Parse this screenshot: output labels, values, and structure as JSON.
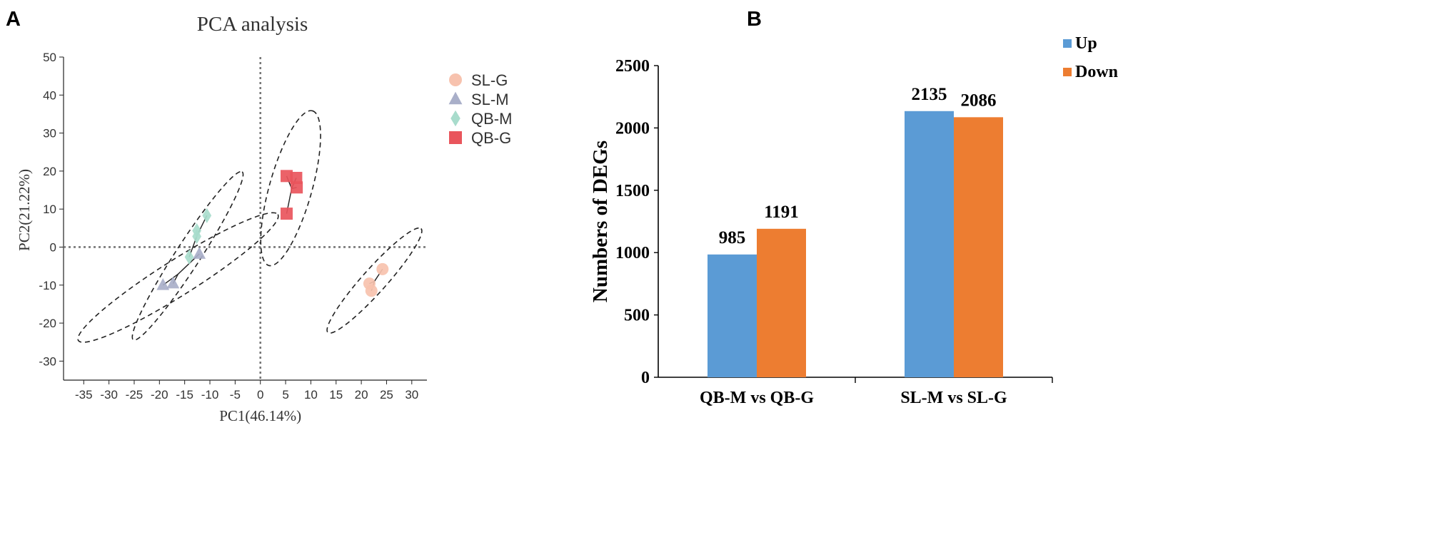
{
  "panels": {
    "left_letter": "A",
    "right_letter": "B"
  },
  "chart_data": [
    {
      "type": "scatter",
      "title": "PCA analysis",
      "xlabel": "PC1(46.14%)",
      "ylabel": "PC2(21.22%)",
      "xlim": [
        -39,
        33
      ],
      "ylim": [
        -35,
        50
      ],
      "xticks": [
        -35,
        -30,
        -25,
        -20,
        -15,
        -10,
        -5,
        0,
        5,
        10,
        15,
        20,
        25,
        30
      ],
      "yticks": [
        -30,
        -20,
        -10,
        0,
        10,
        20,
        30,
        40,
        50
      ],
      "reference_lines": {
        "x": 0,
        "y": 0
      },
      "legend_position": "top-right, outside plot",
      "series": [
        {
          "name": "SL-G",
          "marker": "circle",
          "color": "#f7c2ae",
          "points": [
            [
              24.2,
              -5.8
            ],
            [
              21.6,
              -9.6
            ],
            [
              22.0,
              -11.5
            ]
          ],
          "center": [
            22.6,
            -9.0
          ],
          "ellipse": {
            "center": [
              22.6,
              -8.8
            ],
            "semi_major": 16.5,
            "semi_minor": 2.7,
            "angle_deg": 56
          }
        },
        {
          "name": "SL-M",
          "marker": "triangle",
          "color": "#a9afc9",
          "points": [
            [
              -19.3,
              -10.0
            ],
            [
              -17.3,
              -9.6
            ],
            [
              -12.1,
              -1.8
            ]
          ],
          "center": [
            -16.3,
            -7.1
          ],
          "ellipse": {
            "center": [
              -16.3,
              -8.0
            ],
            "semi_major": 25.8,
            "semi_minor": 4.0,
            "angle_deg": 40
          }
        },
        {
          "name": "QB-M",
          "marker": "diamond",
          "color": "#a8dccc",
          "points": [
            [
              -10.6,
              8.3
            ],
            [
              -12.6,
              4.3
            ],
            [
              -12.6,
              2.8
            ],
            [
              -14.1,
              -2.6
            ]
          ],
          "center": [
            -12.5,
            3.2
          ],
          "ellipse": {
            "center": [
              -14.4,
              -2.3
            ],
            "semi_major": 24.6,
            "semi_minor": 2.8,
            "angle_deg": 64
          }
        },
        {
          "name": "QB-G",
          "marker": "square",
          "color": "#e9555c",
          "points": [
            [
              5.2,
              18.7
            ],
            [
              7.1,
              18.2
            ],
            [
              7.2,
              15.7
            ],
            [
              5.2,
              8.8
            ]
          ],
          "center": [
            6.2,
            15.4
          ],
          "ellipse": {
            "center": [
              6.0,
              15.5
            ],
            "semi_major": 20.8,
            "semi_minor": 4.8,
            "angle_deg": 78
          }
        }
      ]
    },
    {
      "type": "bar",
      "title": "",
      "xlabel": "",
      "ylabel": "Numbers of DEGs",
      "ylim": [
        0,
        2500
      ],
      "yticks": [
        0,
        500,
        1000,
        1500,
        2000,
        2500
      ],
      "categories": [
        "QB-M vs QB-G",
        "SL-M vs SL-G"
      ],
      "series": [
        {
          "name": "Up",
          "color": "#5b9bd5",
          "values": [
            985,
            2135
          ]
        },
        {
          "name": "Down",
          "color": "#ed7d31",
          "values": [
            1191,
            2086
          ]
        }
      ],
      "data_labels": [
        [
          "985",
          "2135"
        ],
        [
          "1191",
          "2086"
        ]
      ],
      "legend_position": "top-right"
    }
  ]
}
